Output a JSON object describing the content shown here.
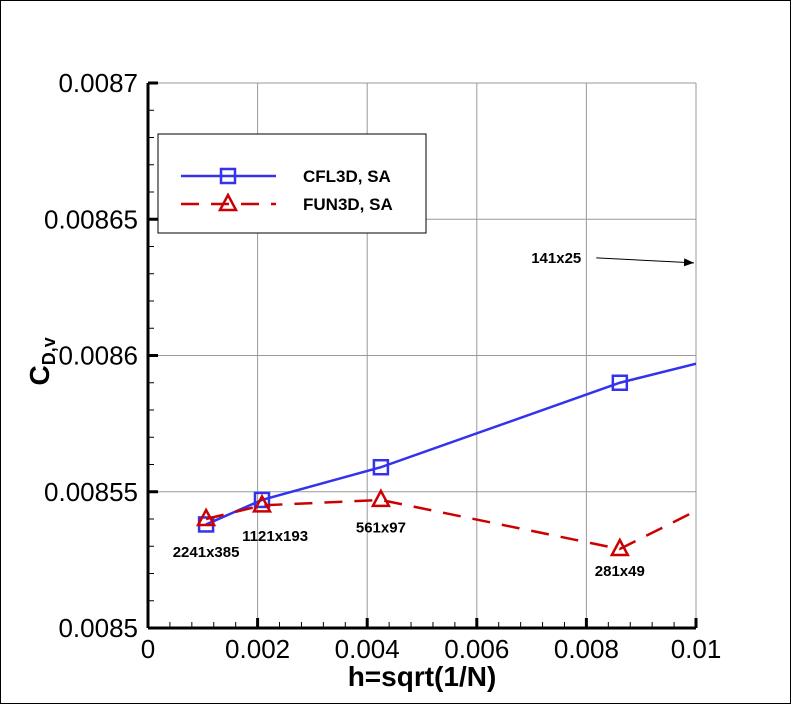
{
  "chart_data": {
    "type": "line",
    "xlabel": "h=sqrt(1/N)",
    "ylabel_main": "C",
    "ylabel_sub": "D,v",
    "xlim": [
      0,
      0.01
    ],
    "ylim": [
      0.0085,
      0.0087
    ],
    "xticks": [
      "0",
      "0.002",
      "0.004",
      "0.006",
      "0.008",
      "0.01"
    ],
    "yticks": [
      "0.0085",
      "0.00855",
      "0.0086",
      "0.00865",
      "0.0087"
    ],
    "grid": true,
    "legend_placement": "top-left",
    "series": [
      {
        "name": "CFL3D, SA",
        "color": "#3333ee",
        "marker": "square",
        "dash": "solid",
        "x": [
          0.00106,
          0.00208,
          0.00425,
          0.00861,
          0.01
        ],
        "y": [
          0.008538,
          0.008547,
          0.008559,
          0.00859,
          0.008597
        ],
        "marked": [
          true,
          true,
          true,
          true,
          false
        ]
      },
      {
        "name": "FUN3D, SA",
        "color": "#cc0000",
        "marker": "triangle",
        "dash": "dashed",
        "x": [
          0.00106,
          0.00208,
          0.00425,
          0.00861,
          0.01
        ],
        "y": [
          0.00854,
          0.008545,
          0.008547,
          0.008529,
          0.008543
        ],
        "marked": [
          true,
          true,
          true,
          true,
          false
        ]
      }
    ],
    "annotations": [
      {
        "text": "2241x385",
        "x": 0.00106,
        "y": 0.008526
      },
      {
        "text": "1121x193",
        "x": 0.00232,
        "y": 0.008532
      },
      {
        "text": "561x97",
        "x": 0.00425,
        "y": 0.008535
      },
      {
        "text": "281x49",
        "x": 0.00861,
        "y": 0.008519
      },
      {
        "text": "141x25",
        "x": 0.00745,
        "y": 0.008634,
        "arrow_to": [
          0.01,
          0.008634
        ]
      }
    ]
  }
}
